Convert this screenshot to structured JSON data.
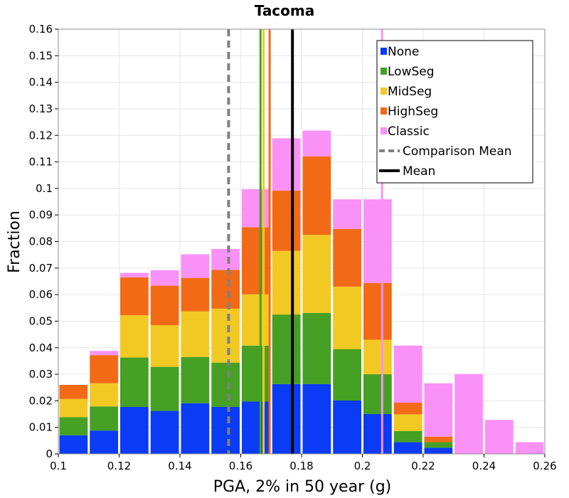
{
  "chart_data": {
    "type": "bar",
    "stacked": true,
    "title": "Tacoma",
    "xlabel": "PGA, 2% in 50 year (g)",
    "ylabel": "Fraction",
    "xlim": [
      0.1,
      0.26
    ],
    "ylim": [
      0,
      0.16
    ],
    "x_ticks": [
      "0.1",
      "0.12",
      "0.14",
      "0.16",
      "0.18",
      "0.2",
      "0.22",
      "0.24",
      "0.26"
    ],
    "y_ticks": [
      "0",
      "0.01",
      "0.02",
      "0.03",
      "0.04",
      "0.05",
      "0.06",
      "0.07",
      "0.08",
      "0.09",
      "0.1",
      "0.11",
      "0.12",
      "0.13",
      "0.14",
      "0.15",
      "0.16"
    ],
    "grid": true,
    "legend_position": "top-right",
    "bin_width": 0.01,
    "x": [
      0.105,
      0.115,
      0.125,
      0.135,
      0.145,
      0.155,
      0.165,
      0.175,
      0.185,
      0.195,
      0.205,
      0.215,
      0.225,
      0.235,
      0.245,
      0.255
    ],
    "series": [
      {
        "name": "None",
        "color": "#0a3cf5",
        "values": [
          0.007,
          0.0088,
          0.0177,
          0.0162,
          0.0191,
          0.0177,
          0.0197,
          0.0263,
          0.0263,
          0.0201,
          0.015,
          0.0044,
          0.0023,
          0,
          0,
          0
        ]
      },
      {
        "name": "LowSeg",
        "color": "#46a023",
        "values": [
          0.0068,
          0.0091,
          0.0186,
          0.0166,
          0.0174,
          0.0167,
          0.0211,
          0.0262,
          0.0268,
          0.0193,
          0.015,
          0.0042,
          0.0021,
          0,
          0,
          0
        ]
      },
      {
        "name": "MidSeg",
        "color": "#f2c923",
        "values": [
          0.0069,
          0.0087,
          0.0159,
          0.0157,
          0.0172,
          0.0203,
          0.0193,
          0.024,
          0.0294,
          0.0236,
          0.013,
          0.0063,
          0,
          0,
          0,
          0
        ]
      },
      {
        "name": "HighSeg",
        "color": "#f26a16",
        "values": [
          0.0053,
          0.0106,
          0.0143,
          0.0149,
          0.0126,
          0.0146,
          0.0253,
          0.0227,
          0.0296,
          0.0217,
          0.0214,
          0.0044,
          0.0021,
          0,
          0,
          0
        ]
      },
      {
        "name": "Classic",
        "color": "#fa91f7",
        "values": [
          0,
          0.0016,
          0.0017,
          0.0058,
          0.0089,
          0.0079,
          0.0143,
          0.0197,
          0.0097,
          0.0112,
          0.0315,
          0.0215,
          0.0201,
          0.0301,
          0.0128,
          0.0044
        ]
      }
    ],
    "vertical_lines": [
      {
        "name": "Comparison Mean",
        "x": 0.156,
        "color": "#808080",
        "style": "dashed"
      },
      {
        "name": "Mean",
        "x": 0.177,
        "color": "#000000",
        "style": "solid"
      },
      {
        "name": "LowSeg mean",
        "x": 0.1665,
        "color": "#46a023",
        "style": "solid"
      },
      {
        "name": "MidSeg mean",
        "x": 0.1675,
        "color": "#f2c923",
        "style": "solid"
      },
      {
        "name": "HighSeg mean",
        "x": 0.1695,
        "color": "#f26a16",
        "style": "solid"
      },
      {
        "name": "Classic mean",
        "x": 0.2065,
        "color": "#fa91f7",
        "style": "solid"
      }
    ],
    "legend": [
      {
        "label": "None",
        "color": "#0a3cf5",
        "kind": "box"
      },
      {
        "label": "LowSeg",
        "color": "#46a023",
        "kind": "box"
      },
      {
        "label": "MidSeg",
        "color": "#f2c923",
        "kind": "box"
      },
      {
        "label": "HighSeg",
        "color": "#f26a16",
        "kind": "box"
      },
      {
        "label": "Classic",
        "color": "#fa91f7",
        "kind": "box"
      },
      {
        "label": "Comparison Mean",
        "color": "#808080",
        "kind": "dashed"
      },
      {
        "label": "Mean",
        "color": "#000000",
        "kind": "solid"
      }
    ]
  }
}
